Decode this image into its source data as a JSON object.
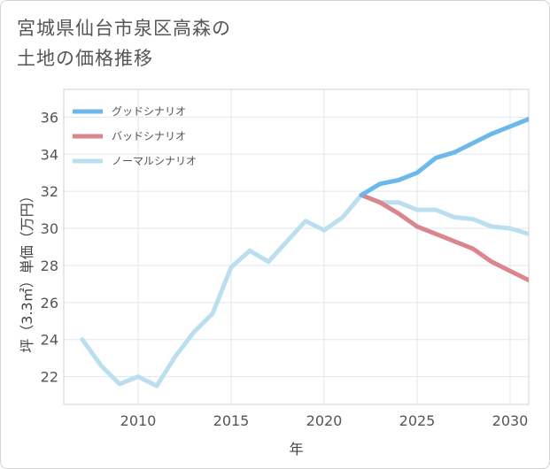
{
  "title": "宮城県仙台市泉区高森の\n土地の価格推移",
  "chart_data": {
    "type": "line",
    "xlabel": "年",
    "ylabel": "坪（3.3㎡）単価（万円）",
    "xlim": [
      2006,
      2031
    ],
    "ylim": [
      20.5,
      37.5
    ],
    "xticks": [
      2010,
      2015,
      2020,
      2025,
      2030
    ],
    "yticks": [
      22,
      24,
      26,
      28,
      30,
      32,
      34,
      36
    ],
    "grid": true,
    "legend_position": "top-left",
    "series": [
      {
        "name": "グッドシナリオ",
        "color": "#6bb8ea",
        "x": [
          2022,
          2023,
          2024,
          2025,
          2026,
          2027,
          2028,
          2029,
          2030,
          2031
        ],
        "values": [
          31.8,
          32.4,
          32.6,
          33.0,
          33.8,
          34.1,
          34.6,
          35.1,
          35.5,
          35.9
        ]
      },
      {
        "name": "バッドシナリオ",
        "color": "#d9868e",
        "x": [
          2022,
          2023,
          2024,
          2025,
          2026,
          2027,
          2028,
          2029,
          2030,
          2031
        ],
        "values": [
          31.8,
          31.4,
          30.8,
          30.1,
          29.7,
          29.3,
          28.9,
          28.2,
          27.7,
          27.2
        ]
      },
      {
        "name": "ノーマルシナリオ",
        "color": "#bcdff0",
        "x": [
          2007,
          2008,
          2009,
          2010,
          2011,
          2012,
          2013,
          2014,
          2015,
          2016,
          2017,
          2018,
          2019,
          2020,
          2021,
          2022,
          2023,
          2024,
          2025,
          2026,
          2027,
          2028,
          2029,
          2030,
          2031
        ],
        "values": [
          24.0,
          22.6,
          21.6,
          22.0,
          21.5,
          23.1,
          24.4,
          25.4,
          27.9,
          28.8,
          28.2,
          29.3,
          30.4,
          29.9,
          30.6,
          31.8,
          31.4,
          31.4,
          31.0,
          31.0,
          30.6,
          30.5,
          30.1,
          30.0,
          29.7
        ]
      }
    ]
  }
}
